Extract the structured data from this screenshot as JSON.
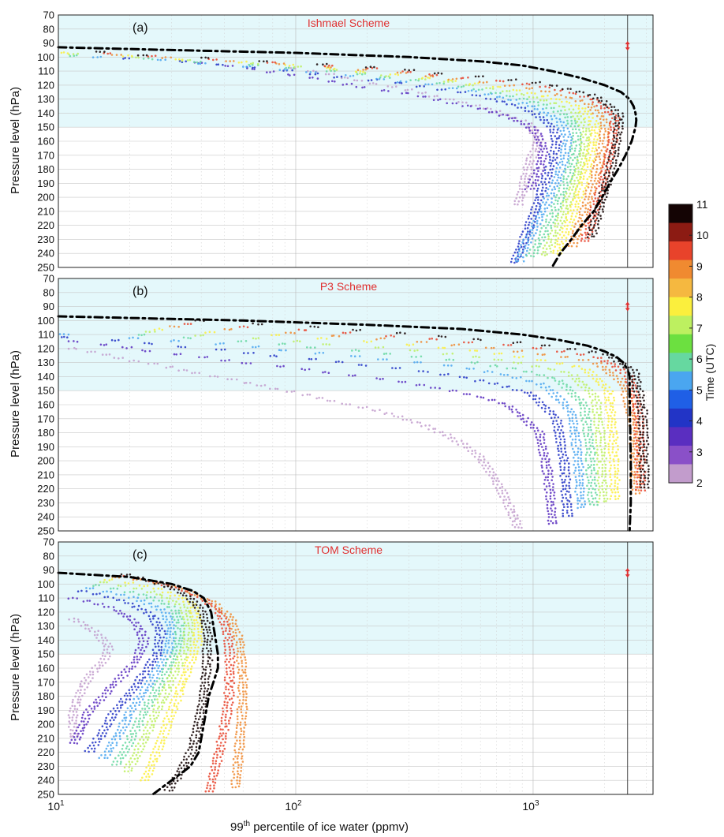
{
  "figure": {
    "xlabel_main": "99",
    "xlabel_sup": "th",
    "xlabel_rest": " percentile of ice water  (ppmv)",
    "ylabel": "Pressure level (hPa)",
    "colorbar": {
      "label": "Time (UTC)",
      "ticks": [
        "11",
        "10",
        "9",
        "8",
        "7",
        "6",
        "5",
        "4",
        "3",
        "2"
      ],
      "colors": [
        "#140404",
        "#8c1b13",
        "#e8432b",
        "#f08a30",
        "#f5b840",
        "#fbef3d",
        "#bdf060",
        "#6ce040",
        "#66d8a0",
        "#4aa6f0",
        "#1f5fe6",
        "#2234c6",
        "#5a2ec0",
        "#8a50c8",
        "#c29ccc"
      ]
    },
    "highlight_color": "#e4f8fb",
    "title_color": "#e03030",
    "marker_color": "#e03030"
  },
  "chart_data": [
    {
      "type": "scatter",
      "panel_label": "(a)",
      "title": "Ishmael Scheme",
      "xscale": "log",
      "xlim": [
        10,
        3200
      ],
      "ylim": [
        250,
        70
      ],
      "yticks": [
        "70",
        "80",
        "90",
        "100",
        "110",
        "120",
        "130",
        "140",
        "150",
        "160",
        "170",
        "180",
        "190",
        "200",
        "210",
        "220",
        "230",
        "240",
        "250"
      ],
      "xticks": [
        "10",
        "10",
        "10"
      ],
      "xtick_sups": [
        "1",
        "2",
        "3"
      ],
      "shaded_range_hpa": [
        70,
        150
      ],
      "vertical_line_x": 2500,
      "marker": {
        "x": 2500,
        "y": 92
      },
      "mean_profile": {
        "p": [
          93,
          95,
          97,
          100,
          103,
          106,
          110,
          115,
          120,
          125,
          130,
          135,
          140,
          145,
          150,
          160,
          170,
          180,
          190,
          200,
          210,
          220,
          230,
          240,
          250
        ],
        "x": [
          10,
          30,
          100,
          300,
          600,
          900,
          1200,
          1600,
          2000,
          2350,
          2550,
          2650,
          2700,
          2720,
          2700,
          2600,
          2450,
          2280,
          2100,
          1950,
          1800,
          1600,
          1450,
          1300,
          1200
        ]
      },
      "series": [
        {
          "time": "2",
          "x": [
            100,
            200,
            400,
            700,
            1000,
            1100,
            1000,
            950,
            900
          ],
          "p": [
            108,
            118,
            128,
            138,
            148,
            160,
            175,
            190,
            205
          ]
        },
        {
          "time": "3",
          "x": [
            40,
            90,
            200,
            450,
            800,
            1050,
            1150,
            1100,
            1000
          ],
          "p": [
            104,
            112,
            122,
            132,
            142,
            152,
            165,
            180,
            195
          ]
        },
        {
          "time": "4",
          "x": [
            20,
            60,
            150,
            350,
            700,
            1050,
            1250,
            1300,
            1250,
            1150,
            1050,
            950,
            850
          ],
          "p": [
            101,
            107,
            114,
            121,
            130,
            140,
            150,
            160,
            175,
            190,
            210,
            230,
            248
          ]
        },
        {
          "time": "5",
          "x": [
            15,
            45,
            120,
            300,
            650,
            1050,
            1350,
            1450,
            1400,
            1300,
            1150,
            1000,
            900
          ],
          "p": [
            100,
            105,
            111,
            118,
            126,
            136,
            146,
            158,
            172,
            188,
            208,
            228,
            246
          ]
        },
        {
          "time": "6",
          "x": [
            12,
            35,
            100,
            260,
            600,
            1050,
            1450,
            1600,
            1550,
            1450,
            1300,
            1150,
            1000
          ],
          "p": [
            99,
            103,
            108,
            115,
            123,
            132,
            142,
            155,
            170,
            186,
            206,
            226,
            244
          ]
        },
        {
          "time": "7",
          "x": [
            12,
            30,
            90,
            230,
            560,
            1050,
            1550,
            1750,
            1700,
            1600,
            1450,
            1300,
            1150
          ],
          "p": [
            98,
            102,
            106,
            113,
            120,
            129,
            139,
            152,
            167,
            183,
            203,
            223,
            242
          ]
        },
        {
          "time": "8",
          "x": [
            11,
            28,
            80,
            210,
            520,
            1050,
            1650,
            1900,
            1850,
            1750,
            1600,
            1450,
            1300
          ],
          "p": [
            97,
            101,
            105,
            111,
            118,
            126,
            136,
            149,
            164,
            180,
            200,
            220,
            240
          ]
        },
        {
          "time": "9",
          "x": [
            10,
            25,
            70,
            190,
            480,
            1050,
            1750,
            2100,
            2050,
            1950,
            1800,
            1650,
            1500
          ],
          "p": [
            96,
            100,
            104,
            109,
            116,
            123,
            133,
            146,
            161,
            177,
            197,
            217,
            236
          ]
        },
        {
          "time": "10",
          "x": [
            10,
            22,
            60,
            170,
            450,
            1050,
            1850,
            2300,
            2250,
            2150,
            2000,
            1850,
            1700
          ],
          "p": [
            95,
            99,
            103,
            107,
            114,
            120,
            130,
            143,
            158,
            174,
            194,
            214,
            232
          ]
        },
        {
          "time": "11",
          "x": [
            10,
            20,
            55,
            160,
            430,
            1050,
            1900,
            2400,
            2350,
            2250,
            2100,
            1950,
            1800
          ],
          "p": [
            94,
            98,
            102,
            106,
            112,
            118,
            128,
            141,
            156,
            172,
            192,
            212,
            230
          ]
        }
      ]
    },
    {
      "type": "scatter",
      "panel_label": "(b)",
      "title": "P3 Scheme",
      "xscale": "log",
      "xlim": [
        10,
        3200
      ],
      "ylim": [
        250,
        70
      ],
      "yticks": [
        "70",
        "80",
        "90",
        "100",
        "110",
        "120",
        "130",
        "140",
        "150",
        "160",
        "170",
        "180",
        "190",
        "200",
        "210",
        "220",
        "230",
        "240",
        "250"
      ],
      "xticks": [
        "10",
        "10",
        "10"
      ],
      "xtick_sups": [
        "1",
        "2",
        "3"
      ],
      "shaded_range_hpa": [
        70,
        150
      ],
      "vertical_line_x": 2500,
      "marker": {
        "x": 2500,
        "y": 90
      },
      "mean_profile": {
        "p": [
          97,
          100,
          103,
          106,
          110,
          114,
          118,
          122,
          126,
          130,
          135,
          140,
          150,
          170,
          200,
          230,
          250
        ],
        "x": [
          10,
          60,
          200,
          500,
          900,
          1300,
          1700,
          2000,
          2250,
          2400,
          2500,
          2550,
          2550,
          2560,
          2580,
          2580,
          2550
        ]
      },
      "series": [
        {
          "time": "2",
          "x": [
            12,
            20,
            40,
            80,
            150,
            300,
            450,
            600,
            700,
            800,
            900
          ],
          "p": [
            120,
            128,
            138,
            148,
            158,
            170,
            182,
            195,
            210,
            228,
            248
          ]
        },
        {
          "time": "3",
          "x": [
            12,
            25,
            60,
            150,
            400,
            800,
            1100,
            1200,
            1250
          ],
          "p": [
            115,
            122,
            130,
            138,
            148,
            160,
            180,
            210,
            245
          ]
        },
        {
          "time": "4",
          "x": [
            11,
            30,
            80,
            200,
            500,
            1000,
            1300,
            1400,
            1450
          ],
          "p": [
            112,
            118,
            125,
            132,
            140,
            152,
            170,
            200,
            240
          ]
        },
        {
          "time": "5",
          "x": [
            11,
            35,
            100,
            250,
            600,
            1150,
            1500,
            1600,
            1650
          ],
          "p": [
            110,
            115,
            122,
            128,
            135,
            146,
            165,
            195,
            235
          ]
        },
        {
          "time": "6",
          "x": [
            10,
            40,
            120,
            300,
            700,
            1300,
            1700,
            1800,
            1850
          ],
          "p": [
            108,
            113,
            119,
            125,
            132,
            142,
            160,
            190,
            232
          ]
        },
        {
          "time": "7",
          "x": [
            10,
            45,
            140,
            350,
            800,
            1500,
            1900,
            2000,
            2050
          ],
          "p": [
            106,
            111,
            117,
            122,
            129,
            138,
            155,
            185,
            230
          ]
        },
        {
          "time": "8",
          "x": [
            10,
            50,
            160,
            400,
            900,
            1700,
            2150,
            2250,
            2300
          ],
          "p": [
            104,
            109,
            114,
            119,
            126,
            134,
            150,
            180,
            228
          ]
        },
        {
          "time": "9",
          "x": [
            10,
            60,
            180,
            450,
            1000,
            1900,
            2500,
            2750,
            2800
          ],
          "p": [
            102,
            107,
            112,
            117,
            123,
            130,
            145,
            175,
            225
          ]
        },
        {
          "time": "10",
          "x": [
            10,
            70,
            200,
            500,
            1100,
            2000,
            2650,
            2900,
            2950
          ],
          "p": [
            100,
            105,
            110,
            115,
            120,
            127,
            140,
            170,
            222
          ]
        },
        {
          "time": "11",
          "x": [
            10,
            80,
            220,
            550,
            1200,
            2100,
            2750,
            3000,
            3050
          ],
          "p": [
            98,
            103,
            108,
            113,
            118,
            124,
            136,
            165,
            220
          ]
        }
      ]
    },
    {
      "type": "scatter",
      "panel_label": "(c)",
      "title": "TOM Scheme",
      "xscale": "log",
      "xlim": [
        10,
        3200
      ],
      "ylim": [
        250,
        70
      ],
      "yticks": [
        "70",
        "80",
        "90",
        "100",
        "110",
        "120",
        "130",
        "140",
        "150",
        "160",
        "170",
        "180",
        "190",
        "200",
        "210",
        "220",
        "230",
        "240",
        "250"
      ],
      "xticks": [
        "10",
        "10",
        "10"
      ],
      "xtick_sups": [
        "1",
        "2",
        "3"
      ],
      "shaded_range_hpa": [
        70,
        150
      ],
      "vertical_line_x": 2500,
      "marker": {
        "x": 2500,
        "y": 92
      },
      "mean_profile": {
        "p": [
          92,
          95,
          100,
          105,
          110,
          120,
          130,
          140,
          150,
          160,
          170,
          180,
          190,
          200,
          210,
          220,
          230,
          240,
          250
        ],
        "x": [
          10,
          20,
          30,
          37,
          41,
          44,
          45,
          46,
          47,
          47,
          45,
          43,
          42,
          41,
          40,
          39,
          36,
          30,
          25
        ]
      },
      "series": [
        {
          "time": "2",
          "x": [
            12,
            15,
            17,
            16,
            14,
            13,
            12,
            12
          ],
          "p": [
            125,
            135,
            145,
            155,
            165,
            175,
            190,
            210
          ]
        },
        {
          "time": "3",
          "x": [
            12,
            18,
            22,
            24,
            22,
            18,
            14,
            12
          ],
          "p": [
            110,
            118,
            128,
            140,
            155,
            170,
            190,
            215
          ]
        },
        {
          "time": "4",
          "x": [
            13,
            20,
            26,
            28,
            27,
            23,
            18,
            14
          ],
          "p": [
            105,
            113,
            123,
            135,
            150,
            168,
            190,
            220
          ]
        },
        {
          "time": "5",
          "x": [
            14,
            22,
            29,
            31,
            30,
            26,
            21,
            16
          ],
          "p": [
            103,
            110,
            120,
            132,
            148,
            166,
            190,
            225
          ]
        },
        {
          "time": "6",
          "x": [
            15,
            24,
            32,
            34,
            33,
            29,
            24,
            18
          ],
          "p": [
            101,
            108,
            118,
            130,
            146,
            165,
            190,
            230
          ]
        },
        {
          "time": "7",
          "x": [
            16,
            26,
            35,
            37,
            36,
            32,
            27,
            20
          ],
          "p": [
            99,
            106,
            116,
            128,
            144,
            163,
            190,
            235
          ]
        },
        {
          "time": "8",
          "x": [
            17,
            28,
            38,
            40,
            40,
            36,
            31,
            24
          ],
          "p": [
            97,
            104,
            114,
            126,
            142,
            162,
            192,
            240
          ]
        },
        {
          "time": "9",
          "x": [
            18,
            32,
            45,
            55,
            60,
            62,
            62,
            60,
            58
          ],
          "p": [
            95,
            102,
            112,
            124,
            140,
            160,
            185,
            215,
            245
          ]
        },
        {
          "time": "10",
          "x": [
            19,
            30,
            42,
            50,
            54,
            55,
            54,
            50,
            45
          ],
          "p": [
            94,
            101,
            110,
            122,
            138,
            158,
            185,
            215,
            248
          ]
        },
        {
          "time": "11",
          "x": [
            20,
            28,
            36,
            42,
            44,
            44,
            42,
            38,
            30
          ],
          "p": [
            93,
            100,
            108,
            120,
            136,
            156,
            185,
            218,
            248
          ]
        }
      ]
    }
  ]
}
